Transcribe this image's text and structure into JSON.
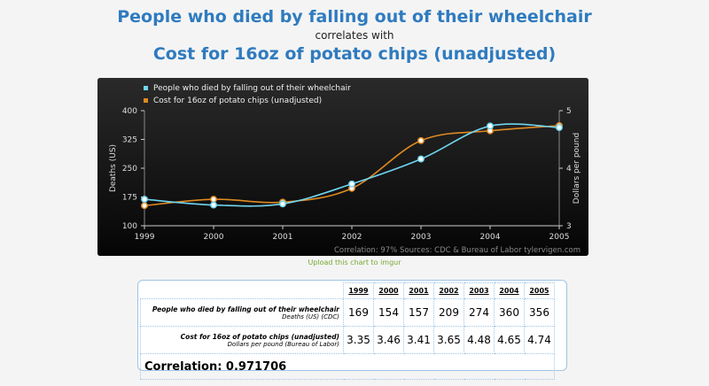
{
  "header": {
    "title_1": "People who died by falling out of their wheelchair",
    "connector": "correlates with",
    "title_2": "Cost for 16oz of potato chips (unadjusted)"
  },
  "chart_data": {
    "type": "line",
    "x": [
      "1999",
      "2000",
      "2001",
      "2002",
      "2003",
      "2004",
      "2005"
    ],
    "series": [
      {
        "name": "People who died by falling out of their wheelchair",
        "values": [
          169,
          154,
          157,
          209,
          274,
          360,
          356
        ],
        "axis": "left",
        "color": "#6fd6f0"
      },
      {
        "name": "Cost for 16oz of potato chips (unadjusted)",
        "values": [
          3.35,
          3.46,
          3.41,
          3.65,
          4.48,
          4.65,
          4.74
        ],
        "axis": "right",
        "color": "#e08a22"
      }
    ],
    "ylabel_left": "Deaths (US)",
    "ylabel_right": "Dollars per pound",
    "ylim_left": [
      100,
      400
    ],
    "yticks_left": [
      100,
      175,
      250,
      325,
      400
    ],
    "ylim_right": [
      3,
      5
    ],
    "yticks_right": [
      3,
      4,
      5
    ],
    "legend": "top-left",
    "footer": "Correlation: 97%    Sources: CDC & Bureau of Labor   tylervigen.com"
  },
  "imgur_link": "Upload this chart to imgur",
  "table": {
    "years": [
      "1999",
      "2000",
      "2001",
      "2002",
      "2003",
      "2004",
      "2005"
    ],
    "rows": [
      {
        "label": "People who died by falling out of their wheelchair",
        "sublabel": "Deaths (US) (CDC)",
        "values": [
          "169",
          "154",
          "157",
          "209",
          "274",
          "360",
          "356"
        ]
      },
      {
        "label": "Cost for 16oz of potato chips (unadjusted)",
        "sublabel": "Dollars per pound (Bureau of Labor)",
        "values": [
          "3.35",
          "3.46",
          "3.41",
          "3.65",
          "4.48",
          "4.65",
          "4.74"
        ]
      }
    ],
    "correlation": "Correlation: 0.971706"
  }
}
